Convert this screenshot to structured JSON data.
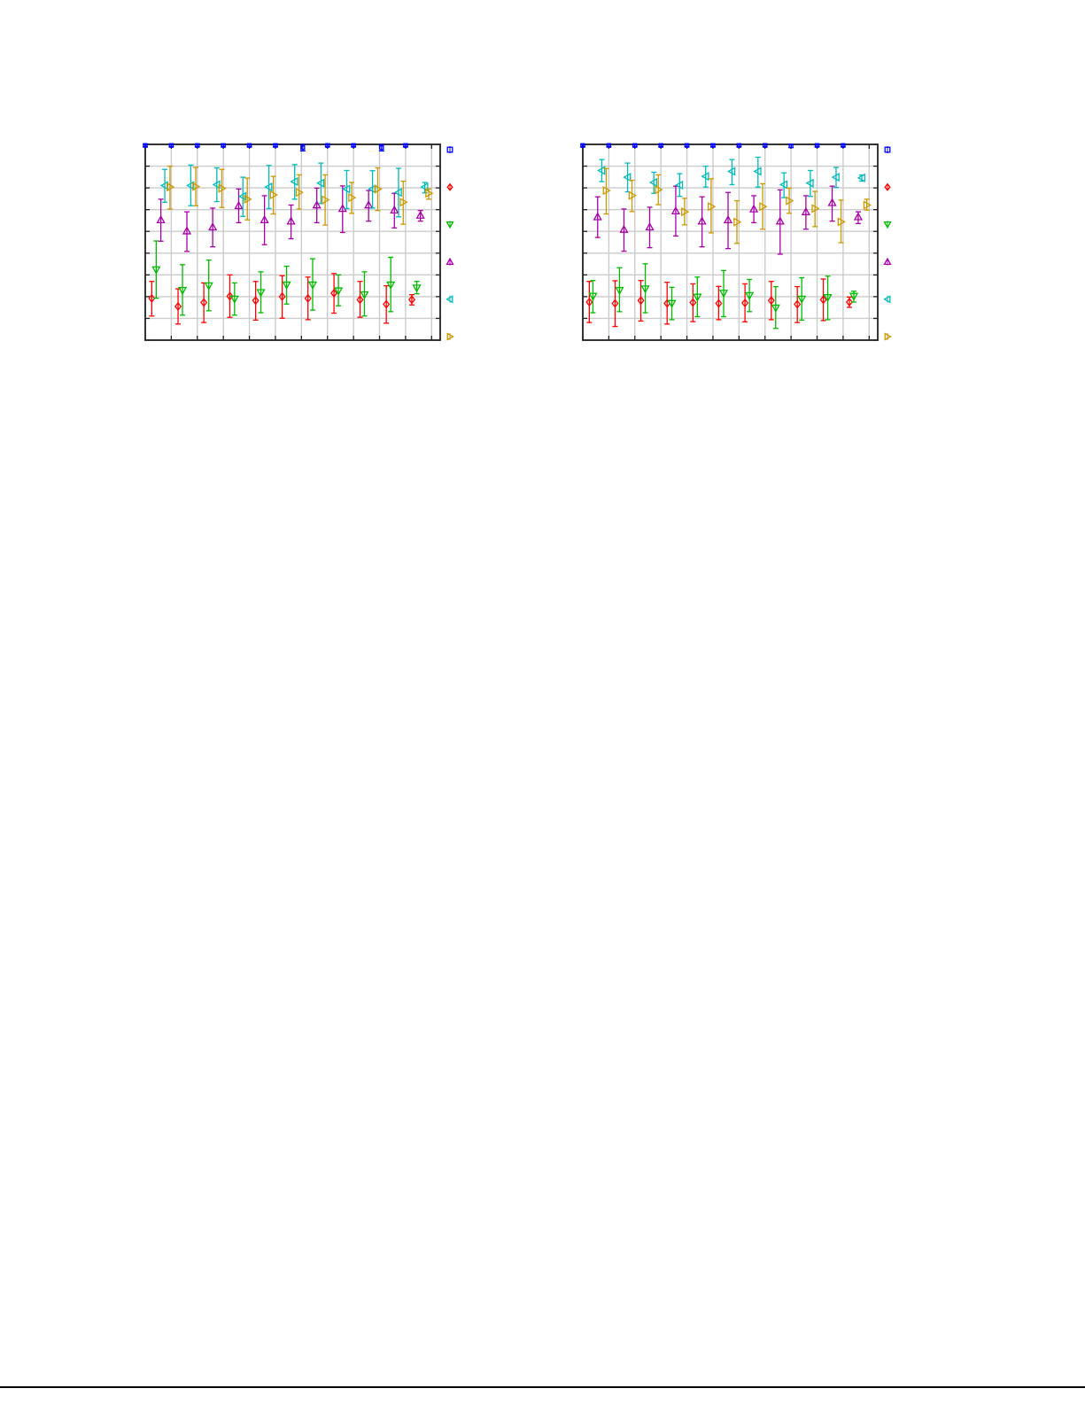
{
  "chart_data": [
    {
      "type": "scatter",
      "error_bars": true,
      "grid": true,
      "legend_placement": "right-outside",
      "xlim": [
        0,
        11.33
      ],
      "ylim": [
        0,
        9
      ],
      "xticks": [
        0,
        1,
        2,
        3,
        4,
        5,
        6,
        7,
        8,
        9,
        10,
        11
      ],
      "yticks": [
        0,
        1,
        2,
        3,
        4,
        5,
        6,
        7,
        8,
        9
      ],
      "series": [
        {
          "marker": "square",
          "color": "#0000ff",
          "x": [
            0,
            1,
            2,
            3,
            4,
            5,
            6.05,
            7,
            8,
            9.08,
            10
          ],
          "y": [
            8.95,
            8.95,
            8.95,
            8.95,
            8.95,
            8.95,
            8.85,
            8.95,
            8.95,
            8.85,
            8.95
          ],
          "ylow": [
            8.9,
            8.9,
            8.9,
            8.9,
            8.9,
            8.9,
            8.7,
            8.9,
            8.9,
            8.7,
            8.9
          ],
          "yhigh": [
            9,
            9,
            9,
            9,
            9,
            9,
            9,
            9,
            9,
            9,
            9
          ]
        },
        {
          "marker": "diamond",
          "color": "#ff0000",
          "x": [
            0.25,
            1.26,
            2.25,
            3.25,
            4.24,
            5.26,
            6.25,
            7.25,
            8.25,
            9.26,
            10.24
          ],
          "y": [
            1.92,
            1.55,
            1.73,
            2.02,
            1.82,
            2.0,
            1.92,
            2.16,
            1.86,
            1.65,
            1.86
          ],
          "ylow": [
            1.11,
            0.74,
            0.81,
            1.05,
            0.92,
            1.01,
            0.94,
            1.24,
            1.05,
            0.78,
            1.62
          ],
          "yhigh": [
            2.7,
            2.36,
            2.63,
            3.0,
            2.7,
            2.96,
            2.9,
            3.06,
            2.7,
            2.5,
            2.09
          ]
        },
        {
          "marker": "triangle-down",
          "color": "#00bb00",
          "x": [
            0.42,
            1.43,
            2.44,
            3.43,
            4.44,
            5.43,
            6.43,
            7.42,
            8.42,
            9.43,
            10.43
          ],
          "y": [
            3.24,
            2.29,
            2.5,
            1.89,
            2.19,
            2.54,
            2.54,
            2.27,
            2.09,
            2.54,
            2.4
          ],
          "ylow": [
            1.93,
            1.15,
            1.35,
            1.15,
            1.26,
            1.66,
            1.38,
            1.58,
            1.11,
            1.31,
            2.13
          ],
          "yhigh": [
            4.56,
            3.47,
            3.68,
            2.63,
            3.14,
            3.4,
            3.74,
            3.0,
            3.14,
            3.81,
            2.7
          ]
        },
        {
          "marker": "triangle-up",
          "color": "#aa00aa",
          "x": [
            0.6,
            1.6,
            2.59,
            3.59,
            4.58,
            5.6,
            6.59,
            7.58,
            8.58,
            9.57,
            10.57
          ],
          "y": [
            5.53,
            5.02,
            5.2,
            6.18,
            5.53,
            5.47,
            6.21,
            6.05,
            6.21,
            5.98,
            5.74
          ],
          "ylow": [
            4.55,
            4.08,
            4.29,
            5.4,
            4.39,
            4.66,
            5.4,
            4.95,
            5.47,
            5.16,
            5.47
          ],
          "yhigh": [
            6.48,
            5.9,
            6.07,
            6.95,
            6.64,
            6.21,
            6.99,
            7.09,
            6.88,
            6.75,
            5.96
          ]
        },
        {
          "marker": "triangle-left",
          "color": "#00bbbb",
          "x": [
            0.75,
            1.75,
            2.75,
            3.75,
            4.75,
            5.74,
            6.75,
            7.74,
            8.73,
            9.73,
            10.74
          ],
          "y": [
            7.11,
            7.11,
            7.15,
            6.61,
            7.04,
            7.29,
            7.22,
            6.95,
            6.95,
            6.79,
            7.04
          ],
          "ylow": [
            6.34,
            6.18,
            6.37,
            5.69,
            6.05,
            6.48,
            6.28,
            6.05,
            6.07,
            5.67,
            6.77
          ],
          "yhigh": [
            7.85,
            8.05,
            7.92,
            7.49,
            8.03,
            8.07,
            8.14,
            7.8,
            7.79,
            7.9,
            7.25
          ]
        },
        {
          "marker": "triangle-right",
          "color": "#cc9900",
          "x": [
            0.95,
            1.94,
            2.94,
            3.92,
            4.92,
            5.91,
            6.91,
            7.93,
            8.93,
            9.91,
            10.89
          ],
          "y": [
            7.04,
            7.06,
            6.98,
            6.48,
            6.68,
            6.79,
            6.45,
            6.55,
            6.95,
            6.34,
            6.75
          ],
          "ylow": [
            6.03,
            6.18,
            6.1,
            5.53,
            5.8,
            6.03,
            5.29,
            5.83,
            5.96,
            5.33,
            6.48
          ],
          "yhigh": [
            8.0,
            7.94,
            7.85,
            7.45,
            7.53,
            7.6,
            7.6,
            7.25,
            7.92,
            7.31,
            6.95
          ]
        }
      ]
    },
    {
      "type": "scatter",
      "error_bars": true,
      "grid": true,
      "legend_placement": "right-outside",
      "xlim": [
        0,
        11.33
      ],
      "ylim": [
        0,
        9
      ],
      "xticks": [
        0,
        1,
        2,
        3,
        4,
        5,
        6,
        7,
        8,
        9,
        10,
        11
      ],
      "yticks": [
        0,
        1,
        2,
        3,
        4,
        5,
        6,
        7,
        8,
        9
      ],
      "series": [
        {
          "marker": "square",
          "color": "#0000ff",
          "x": [
            0,
            1,
            2,
            3,
            4,
            5,
            6,
            7,
            8,
            9,
            10
          ],
          "y": [
            8.95,
            8.95,
            8.95,
            8.95,
            8.95,
            8.95,
            8.95,
            8.95,
            8.93,
            8.95,
            8.95
          ],
          "ylow": [
            8.9,
            8.9,
            8.9,
            8.9,
            8.9,
            8.9,
            8.9,
            8.9,
            8.86,
            8.9,
            8.9
          ],
          "yhigh": [
            9,
            9,
            9,
            9,
            9,
            9,
            9,
            9,
            9,
            9,
            9
          ]
        },
        {
          "marker": "diamond",
          "color": "#ff0000",
          "x": [
            0.25,
            1.24,
            2.23,
            3.24,
            4.23,
            5.22,
            6.23,
            7.24,
            8.24,
            9.24,
            10.24
          ],
          "y": [
            1.75,
            1.69,
            1.82,
            1.69,
            1.73,
            1.69,
            1.71,
            1.82,
            1.65,
            1.86,
            1.75
          ],
          "ylow": [
            0.81,
            0.63,
            0.88,
            0.74,
            0.85,
            0.94,
            0.84,
            0.94,
            0.81,
            0.9,
            1.51
          ],
          "yhigh": [
            2.7,
            2.73,
            2.74,
            2.66,
            2.59,
            2.47,
            2.59,
            2.7,
            2.46,
            2.81,
            1.98
          ]
        },
        {
          "marker": "triangle-down",
          "color": "#00bb00",
          "x": [
            0.39,
            1.41,
            2.4,
            3.42,
            4.4,
            5.41,
            6.4,
            7.41,
            8.41,
            9.41,
            10.41
          ],
          "y": [
            2.02,
            2.29,
            2.36,
            1.69,
            1.98,
            2.16,
            2.05,
            1.48,
            1.89,
            1.96,
            2.02
          ],
          "ylow": [
            1.26,
            1.31,
            1.26,
            0.94,
            1.08,
            1.08,
            1.31,
            0.54,
            0.92,
            0.94,
            1.75
          ],
          "yhigh": [
            2.74,
            3.33,
            3.51,
            2.43,
            2.9,
            3.2,
            2.79,
            2.46,
            2.87,
            2.94,
            2.25
          ]
        },
        {
          "marker": "triangle-up",
          "color": "#aa00aa",
          "x": [
            0.57,
            1.58,
            2.57,
            3.57,
            4.58,
            5.58,
            6.57,
            7.58,
            8.57,
            9.58,
            10.58
          ],
          "y": [
            5.67,
            5.09,
            5.2,
            5.94,
            5.47,
            5.53,
            6.03,
            5.47,
            5.9,
            6.32,
            5.67
          ],
          "ylow": [
            4.72,
            4.09,
            4.25,
            4.79,
            4.29,
            4.21,
            5.4,
            3.95,
            5.1,
            5.47,
            5.36
          ],
          "yhigh": [
            6.59,
            6.03,
            6.11,
            7.08,
            6.59,
            6.79,
            6.64,
            6.91,
            6.64,
            7.08,
            5.9
          ]
        },
        {
          "marker": "triangle-left",
          "color": "#00bbbb",
          "x": [
            0.73,
            1.72,
            2.73,
            3.72,
            4.72,
            5.73,
            6.73,
            7.73,
            8.74,
            9.73,
            10.72
          ],
          "y": [
            7.8,
            7.49,
            7.25,
            7.13,
            7.53,
            7.76,
            7.76,
            7.15,
            7.22,
            7.49,
            7.46
          ],
          "ylow": [
            7.29,
            6.82,
            6.75,
            6.61,
            7.04,
            7.15,
            7.04,
            6.55,
            6.61,
            7.02,
            7.31
          ],
          "yhigh": [
            8.3,
            8.14,
            7.72,
            7.65,
            8.0,
            8.3,
            8.41,
            7.69,
            7.8,
            7.94,
            7.59
          ]
        },
        {
          "marker": "triangle-right",
          "color": "#cc9900",
          "x": [
            0.9,
            1.89,
            2.9,
            3.91,
            4.93,
            5.92,
            6.91,
            7.93,
            8.92,
            9.92,
            10.91
          ],
          "y": [
            6.88,
            6.65,
            6.92,
            5.9,
            6.14,
            5.43,
            6.14,
            6.41,
            6.05,
            5.44,
            6.21
          ],
          "ylow": [
            5.8,
            5.91,
            6.23,
            5.3,
            4.93,
            4.45,
            5.1,
            5.83,
            5.22,
            4.48,
            5.98
          ],
          "yhigh": [
            7.89,
            7.35,
            7.6,
            6.52,
            7.42,
            6.41,
            7.19,
            6.99,
            6.84,
            6.44,
            6.48
          ]
        }
      ]
    }
  ]
}
